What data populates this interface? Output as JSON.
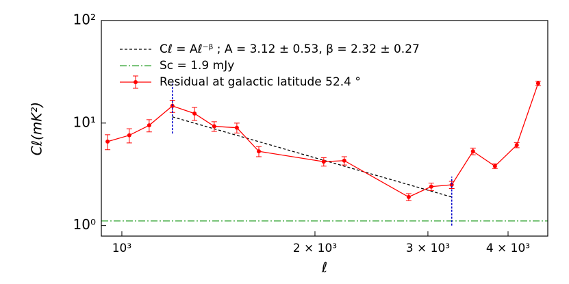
{
  "chart_data": {
    "type": "line",
    "xlabel": "ℓ",
    "ylabel": "Cℓ(mK²)",
    "xscale": "log",
    "yscale": "log",
    "xlim": [
      929,
      4613
    ],
    "ylim": [
      0.79,
      100
    ],
    "xticks": [
      {
        "value": 1000,
        "label": "10³"
      },
      {
        "value": 2000,
        "label": "2 × 10³"
      },
      {
        "value": 3000,
        "label": "3 × 10³"
      },
      {
        "value": 4000,
        "label": "4 × 10³"
      }
    ],
    "yticks": [
      {
        "value": 1,
        "label": "10⁰"
      },
      {
        "value": 10,
        "label": "10¹"
      },
      {
        "value": 100,
        "label": "10²"
      }
    ],
    "legend": "upper center",
    "series": [
      {
        "name": "Cℓ = Aℓ⁻ᵝ ; A = 3.12 ± 0.53, β = 2.32 ± 0.27",
        "color": "#000000",
        "style": "dashed",
        "x": [
          1199,
          3268
        ],
        "values": [
          11.5,
          1.9
        ]
      },
      {
        "name": "Sc = 1.9 mJy",
        "color": "#2ca02c",
        "style": "dashdot",
        "x": [
          929,
          4613
        ],
        "values": [
          1.11,
          1.11
        ]
      },
      {
        "name": "Residual at galactic latitude 52.4 °",
        "color": "#ff0000",
        "style": "solid",
        "x": [
          950,
          1027,
          1103,
          1199,
          1298,
          1393,
          1511,
          1635,
          2064,
          2222,
          2800,
          3036,
          3268,
          3527,
          3816,
          4127,
          4456
        ],
        "values": [
          6.6,
          7.6,
          9.5,
          14.7,
          12.4,
          9.3,
          9.0,
          5.3,
          4.2,
          4.3,
          1.9,
          2.4,
          2.5,
          5.3,
          3.8,
          6.1,
          24.4
        ],
        "errors": [
          1.1,
          1.2,
          1.3,
          2.0,
          1.8,
          1.0,
          1.0,
          0.6,
          0.4,
          0.4,
          0.15,
          0.2,
          0.2,
          0.4,
          0.2,
          0.35,
          1.2
        ]
      }
    ],
    "vlines": [
      {
        "x": 1199,
        "ymin": 7.9,
        "ymax": 25,
        "color": "#0000cc"
      },
      {
        "x": 3268,
        "ymin": 1.0,
        "ymax": 3.0,
        "color": "#0000cc"
      }
    ]
  }
}
